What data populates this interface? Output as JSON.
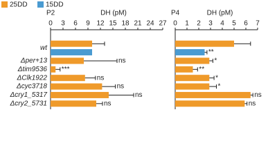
{
  "chart_data": [
    {
      "type": "bar",
      "title": "P2",
      "xlabel": "DH (pM)",
      "categories": [
        "wt",
        "Δper+13",
        "Δtim9536",
        "ΔClk1922",
        "Δcyc3718",
        "Δcry1_5317",
        "Δcry2_5731"
      ],
      "series": [
        {
          "name": "25DD",
          "color": "#ef9a2a",
          "values": [
            10,
            8,
            1.2,
            8.3,
            12.4,
            14,
            11
          ],
          "errors": [
            3,
            8,
            1.1,
            2.5,
            3.2,
            6,
            1.5
          ],
          "annotations": [
            null,
            "ns",
            "***",
            "ns",
            "ns",
            "ns",
            "ns"
          ]
        },
        {
          "name": "15DD",
          "color": "#4a9bd1",
          "values": [
            10,
            null,
            null,
            null,
            null,
            null,
            null
          ],
          "errors": [
            null,
            null,
            null,
            null,
            null,
            null,
            null
          ],
          "annotations": [
            null,
            null,
            null,
            null,
            null,
            null,
            null
          ]
        }
      ],
      "xlim": [
        0,
        27
      ],
      "xticks": [
        0,
        3,
        6,
        9,
        12,
        15,
        18,
        21,
        24,
        27
      ]
    },
    {
      "type": "bar",
      "title": "P4",
      "xlabel": "DH (pM)",
      "categories": [
        "wt",
        "Δper+13",
        "Δtim9536",
        "ΔClk1922",
        "Δcyc3718",
        "Δcry1_5317",
        "Δcry2_5731"
      ],
      "series": [
        {
          "name": "25DD",
          "color": "#ef9a2a",
          "values": [
            5,
            2.9,
            1.5,
            2.9,
            2.9,
            6.4,
            5.9
          ],
          "errors": [
            1.4,
            0.3,
            0.4,
            0.4,
            0.6,
            0.2,
            0.2
          ],
          "annotations": [
            null,
            "*",
            "**",
            "*",
            "*",
            "ns",
            "ns"
          ]
        },
        {
          "name": "15DD",
          "color": "#4a9bd1",
          "values": [
            2.5,
            null,
            null,
            null,
            null,
            null,
            null
          ],
          "errors": [
            0.2,
            null,
            null,
            null,
            null,
            null,
            null
          ],
          "annotations": [
            "**",
            null,
            null,
            null,
            null,
            null,
            null
          ]
        }
      ],
      "xlim": [
        0,
        7
      ],
      "xticks": [
        0,
        1,
        2,
        3,
        4,
        5,
        6,
        7
      ]
    }
  ]
}
